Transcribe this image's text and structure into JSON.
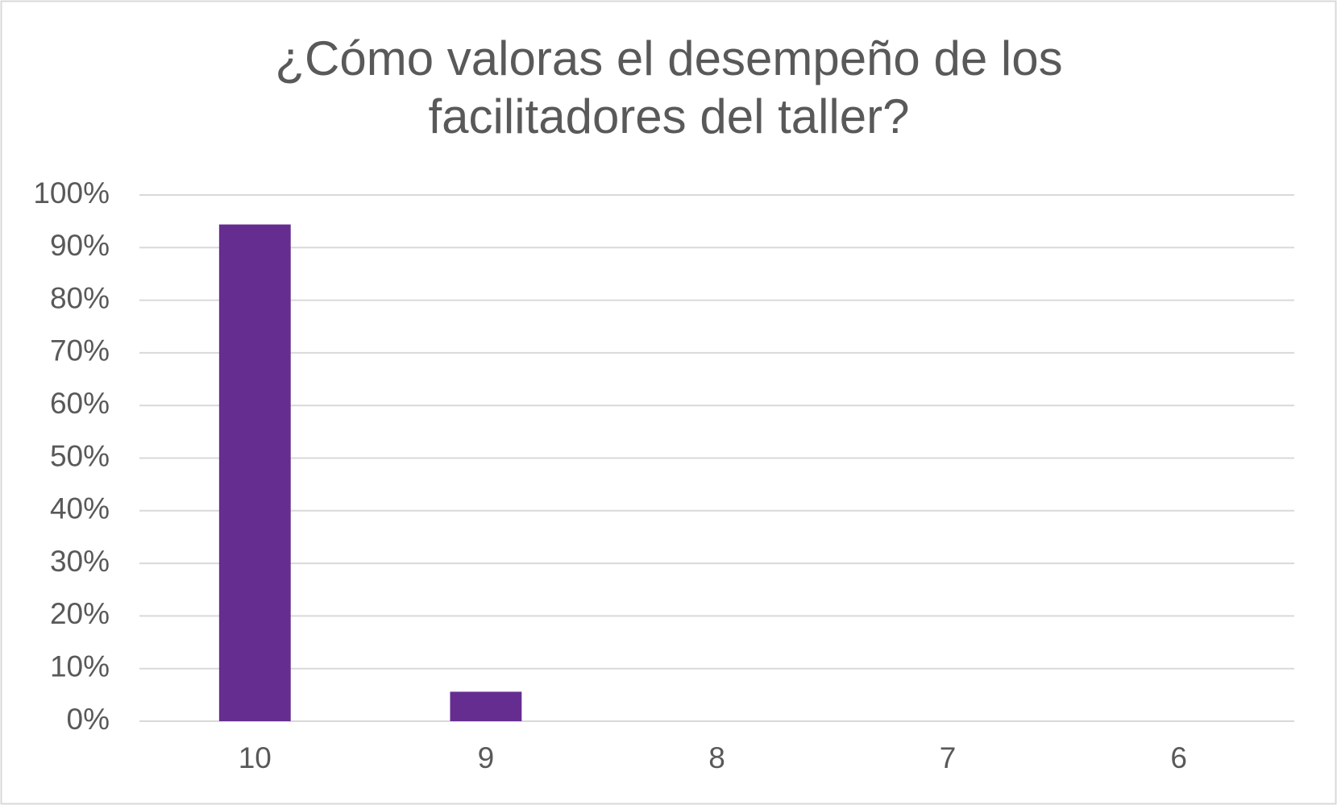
{
  "chart_data": {
    "type": "bar",
    "title": [
      "¿Cómo valoras el desempeño de los",
      "facilitadores del taller?"
    ],
    "categories": [
      "10",
      "9",
      "8",
      "7",
      "6"
    ],
    "values": [
      94.4,
      5.6,
      0,
      0,
      0
    ],
    "color": "#662d91",
    "ylim": [
      0,
      100
    ],
    "yticks": [
      {
        "value": 0,
        "label": "0%"
      },
      {
        "value": 10,
        "label": "10%"
      },
      {
        "value": 20,
        "label": "20%"
      },
      {
        "value": 30,
        "label": "30%"
      },
      {
        "value": 40,
        "label": "40%"
      },
      {
        "value": 50,
        "label": "50%"
      },
      {
        "value": 60,
        "label": "60%"
      },
      {
        "value": 70,
        "label": "70%"
      },
      {
        "value": 80,
        "label": "80%"
      },
      {
        "value": 90,
        "label": "90%"
      },
      {
        "value": 100,
        "label": "100%"
      }
    ],
    "grid": true
  }
}
